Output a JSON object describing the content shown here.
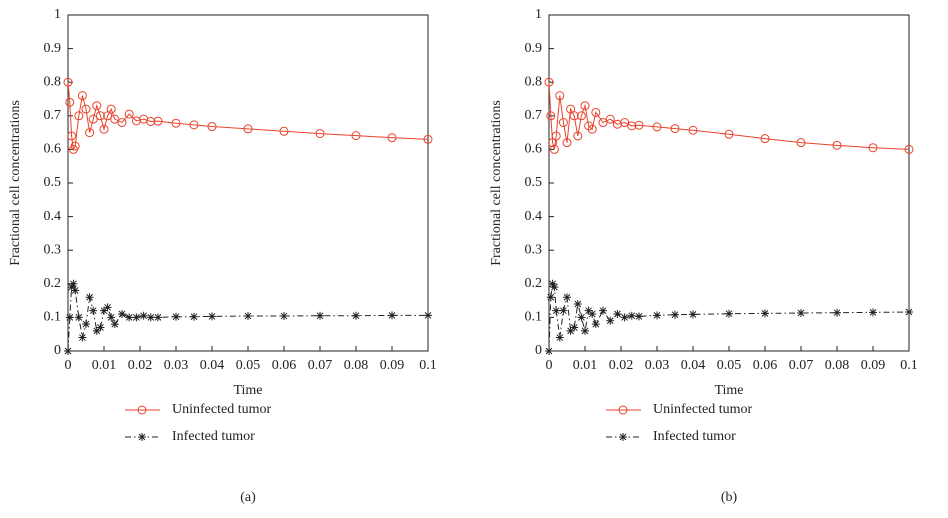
{
  "chart_data": [
    {
      "type": "line",
      "caption": "(a)",
      "xlabel": "Time",
      "ylabel": "Fractional cell concentrations",
      "x": [
        0,
        0.0005,
        0.001,
        0.0015,
        0.002,
        0.003,
        0.004,
        0.005,
        0.006,
        0.007,
        0.008,
        0.009,
        0.01,
        0.011,
        0.012,
        0.013,
        0.015,
        0.017,
        0.019,
        0.021,
        0.023,
        0.025,
        0.03,
        0.035,
        0.04,
        0.05,
        0.06,
        0.07,
        0.08,
        0.09,
        0.1
      ],
      "series": [
        {
          "name": "Uninfected tumor",
          "color": "#e8432b",
          "marker": "circle",
          "linestyle": "solid",
          "values": [
            0.8,
            0.74,
            0.64,
            0.6,
            0.61,
            0.7,
            0.76,
            0.72,
            0.65,
            0.69,
            0.73,
            0.7,
            0.66,
            0.7,
            0.72,
            0.69,
            0.68,
            0.705,
            0.685,
            0.69,
            0.683,
            0.684,
            0.678,
            0.673,
            0.668,
            0.661,
            0.654,
            0.647,
            0.641,
            0.635,
            0.63
          ]
        },
        {
          "name": "Infected tumor",
          "color": "#222222",
          "marker": "asterisk",
          "linestyle": "dashdot",
          "values": [
            0,
            0.1,
            0.19,
            0.2,
            0.18,
            0.1,
            0.04,
            0.08,
            0.16,
            0.12,
            0.06,
            0.07,
            0.12,
            0.13,
            0.1,
            0.08,
            0.11,
            0.1,
            0.1,
            0.105,
            0.1,
            0.1,
            0.102,
            0.102,
            0.103,
            0.104,
            0.104,
            0.105,
            0.105,
            0.106,
            0.106
          ]
        }
      ],
      "xlim": [
        0,
        0.1
      ],
      "xticks": [
        0,
        0.01,
        0.02,
        0.03,
        0.04,
        0.05,
        0.06,
        0.07,
        0.08,
        0.09,
        0.1
      ],
      "ylim": [
        0,
        1
      ],
      "yticks": [
        0,
        0.1,
        0.2,
        0.3,
        0.4,
        0.5,
        0.6,
        0.7,
        0.8,
        0.9,
        1
      ]
    },
    {
      "type": "line",
      "caption": "(b)",
      "xlabel": "Time",
      "ylabel": "Fractional cell concentrations",
      "x": [
        0,
        0.0005,
        0.001,
        0.0015,
        0.002,
        0.003,
        0.004,
        0.005,
        0.006,
        0.007,
        0.008,
        0.009,
        0.01,
        0.011,
        0.012,
        0.013,
        0.015,
        0.017,
        0.019,
        0.021,
        0.023,
        0.025,
        0.03,
        0.035,
        0.04,
        0.05,
        0.06,
        0.07,
        0.08,
        0.09,
        0.1
      ],
      "series": [
        {
          "name": "Uninfected tumor",
          "color": "#e8432b",
          "marker": "circle",
          "linestyle": "solid",
          "values": [
            0.8,
            0.7,
            0.62,
            0.6,
            0.64,
            0.76,
            0.68,
            0.62,
            0.72,
            0.7,
            0.64,
            0.7,
            0.73,
            0.67,
            0.66,
            0.71,
            0.68,
            0.69,
            0.675,
            0.68,
            0.67,
            0.672,
            0.667,
            0.662,
            0.657,
            0.645,
            0.632,
            0.62,
            0.612,
            0.605,
            0.6
          ]
        },
        {
          "name": "Infected tumor",
          "color": "#222222",
          "marker": "asterisk",
          "linestyle": "dashdot",
          "values": [
            0,
            0.16,
            0.2,
            0.19,
            0.12,
            0.04,
            0.12,
            0.16,
            0.06,
            0.07,
            0.14,
            0.1,
            0.06,
            0.12,
            0.11,
            0.08,
            0.12,
            0.09,
            0.11,
            0.1,
            0.105,
            0.103,
            0.106,
            0.108,
            0.109,
            0.111,
            0.112,
            0.113,
            0.114,
            0.115,
            0.116
          ]
        }
      ],
      "xlim": [
        0,
        0.1
      ],
      "xticks": [
        0,
        0.01,
        0.02,
        0.03,
        0.04,
        0.05,
        0.06,
        0.07,
        0.08,
        0.09,
        0.1
      ],
      "ylim": [
        0,
        1
      ],
      "yticks": [
        0,
        0.1,
        0.2,
        0.3,
        0.4,
        0.5,
        0.6,
        0.7,
        0.8,
        0.9,
        1
      ]
    }
  ]
}
